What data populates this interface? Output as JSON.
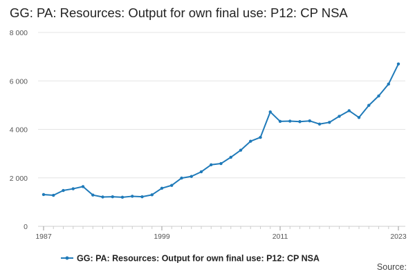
{
  "chart_data": {
    "type": "line",
    "title": "GG: PA: Resources: Output for own final use: P12: CP NSA",
    "xlabel": "",
    "ylabel": "",
    "x": [
      1987,
      1988,
      1989,
      1990,
      1991,
      1992,
      1993,
      1994,
      1995,
      1996,
      1997,
      1998,
      1999,
      2000,
      2001,
      2002,
      2003,
      2004,
      2005,
      2006,
      2007,
      2008,
      2009,
      2010,
      2011,
      2012,
      2013,
      2014,
      2015,
      2016,
      2017,
      2018,
      2019,
      2020,
      2021,
      2022,
      2023
    ],
    "series": [
      {
        "name": "GG: PA: Resources: Output for own final use: P12: CP NSA",
        "values": [
          1310,
          1280,
          1480,
          1550,
          1640,
          1290,
          1210,
          1220,
          1200,
          1240,
          1220,
          1300,
          1570,
          1690,
          1990,
          2060,
          2250,
          2540,
          2590,
          2850,
          3140,
          3510,
          3670,
          4720,
          4330,
          4340,
          4320,
          4350,
          4220,
          4290,
          4540,
          4770,
          4490,
          4990,
          5380,
          5870,
          6700
        ]
      }
    ],
    "ylim": [
      0,
      8000
    ],
    "xlim": [
      1987,
      2023
    ],
    "y_ticks": [
      0,
      2000,
      4000,
      6000,
      8000
    ],
    "y_tick_labels": [
      "0",
      "2 000",
      "4 000",
      "6 000",
      "8 000"
    ],
    "x_ticks": [
      1987,
      1999,
      2011,
      2023
    ],
    "x_tick_labels": [
      "1987",
      "1999",
      "2011",
      "2023"
    ],
    "grid": "horizontal",
    "legend": "bottom-center",
    "line_color": "#1f7ab9",
    "source_label": "Source:"
  }
}
